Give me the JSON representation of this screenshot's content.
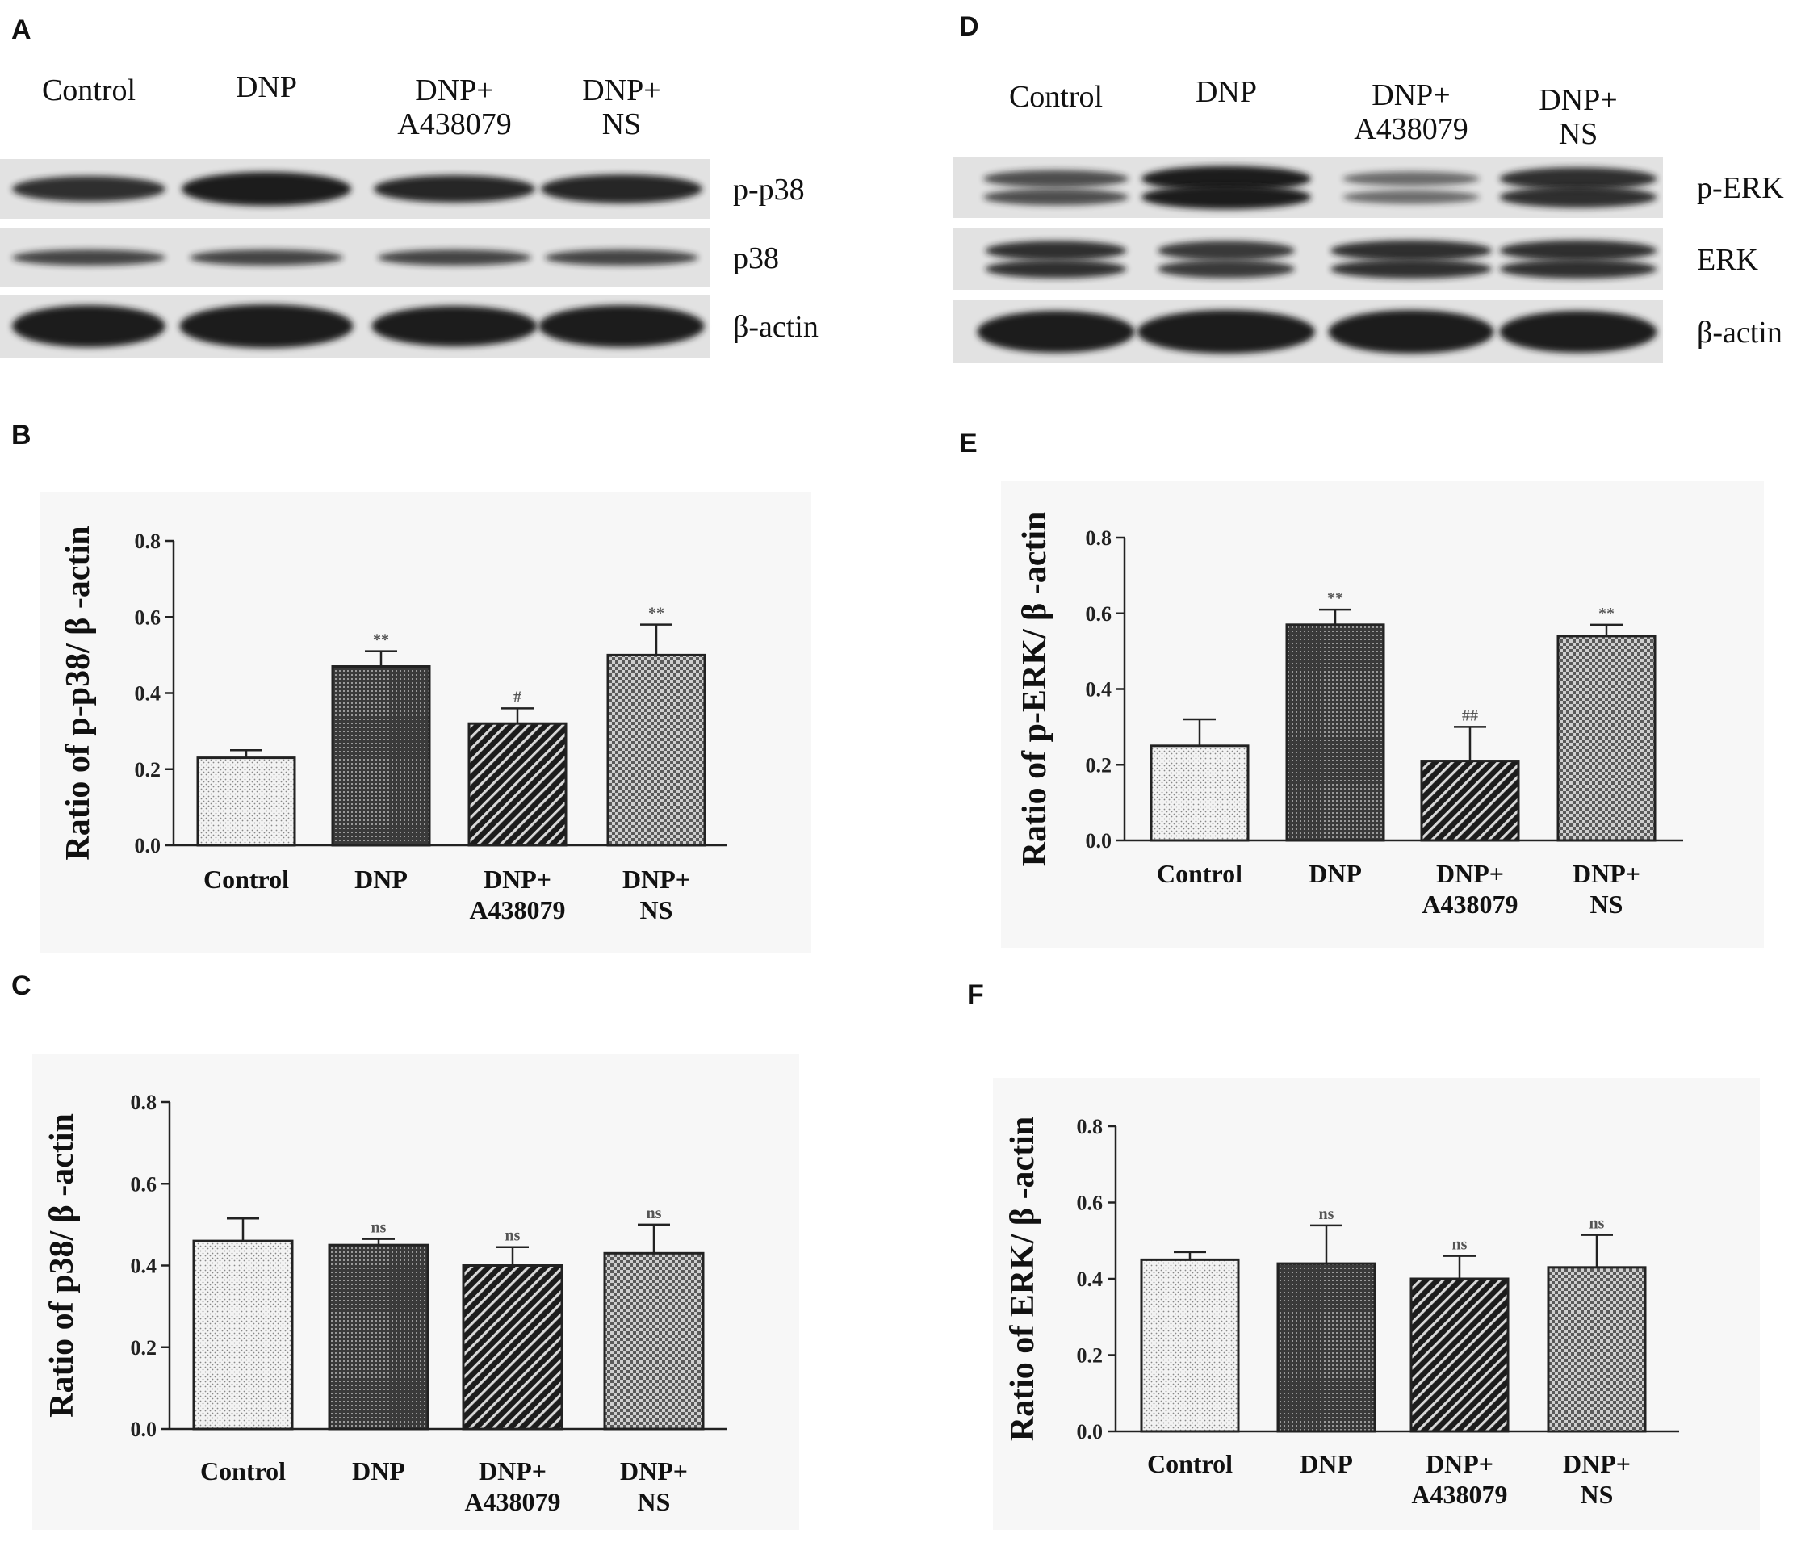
{
  "panel_labels": {
    "A": "A",
    "B": "B",
    "C": "C",
    "D": "D",
    "E": "E",
    "F": "F"
  },
  "blot_A": {
    "lanes": [
      "Control",
      "DNP",
      "DNP+ A438079",
      "DNP+ NS"
    ],
    "lane_lines": [
      [
        "Control"
      ],
      [
        "DNP"
      ],
      [
        "DNP+",
        "A438079"
      ],
      [
        "DNP+",
        "NS"
      ]
    ],
    "rows": [
      "p-p38",
      "p38",
      "β-actin"
    ]
  },
  "blot_D": {
    "lanes": [
      "Control",
      "DNP",
      "DNP+ A438079",
      "DNP+ NS"
    ],
    "lane_lines": [
      [
        "Control"
      ],
      [
        "DNP"
      ],
      [
        "DNP+",
        "A438079"
      ],
      [
        "DNP+",
        "NS"
      ]
    ],
    "rows": [
      "p-ERK",
      "ERK",
      "β-actin"
    ]
  },
  "colors": {
    "bar_stroke": "#222222",
    "chart_bg": "#f7f7f7",
    "blot_bg": "#e2e2e2",
    "band": "#1a1a1a"
  },
  "chart_data": [
    {
      "panel": "B",
      "type": "bar",
      "categories": [
        "Control",
        "DNP",
        "DNP+ A438079",
        "DNP+ NS"
      ],
      "category_lines": [
        [
          "Control"
        ],
        [
          "DNP"
        ],
        [
          "DNP+",
          "A438079"
        ],
        [
          "DNP+",
          "NS"
        ]
      ],
      "values": [
        0.23,
        0.47,
        0.32,
        0.5
      ],
      "errors": [
        0.02,
        0.04,
        0.04,
        0.08
      ],
      "annotations": [
        "",
        "**",
        "#",
        "**"
      ],
      "ylabel": "Ratio of p-p38/ β -actin",
      "ylim": [
        0,
        0.8
      ],
      "yticks": [
        "0.0",
        "0.2",
        "0.4",
        "0.6",
        "0.8"
      ],
      "patterns": [
        "dots",
        "grid",
        "stripes",
        "check"
      ]
    },
    {
      "panel": "C",
      "type": "bar",
      "categories": [
        "Control",
        "DNP",
        "DNP+ A438079",
        "DNP+ NS"
      ],
      "category_lines": [
        [
          "Control"
        ],
        [
          "DNP"
        ],
        [
          "DNP+",
          "A438079"
        ],
        [
          "DNP+",
          "NS"
        ]
      ],
      "values": [
        0.46,
        0.45,
        0.4,
        0.43
      ],
      "errors": [
        0.055,
        0.015,
        0.045,
        0.07
      ],
      "annotations": [
        "",
        "ns",
        "ns",
        "ns"
      ],
      "ylabel": "Ratio of p38/ β -actin",
      "ylim": [
        0,
        0.8
      ],
      "yticks": [
        "0.0",
        "0.2",
        "0.4",
        "0.6",
        "0.8"
      ],
      "patterns": [
        "dots",
        "grid",
        "stripes",
        "check"
      ]
    },
    {
      "panel": "E",
      "type": "bar",
      "categories": [
        "Control",
        "DNP",
        "DNP+ A438079",
        "DNP+ NS"
      ],
      "category_lines": [
        [
          "Control"
        ],
        [
          "DNP"
        ],
        [
          "DNP+",
          "A438079"
        ],
        [
          "DNP+",
          "NS"
        ]
      ],
      "values": [
        0.25,
        0.57,
        0.21,
        0.54
      ],
      "errors": [
        0.07,
        0.04,
        0.09,
        0.03
      ],
      "annotations": [
        "",
        "**",
        "##",
        "**"
      ],
      "ylabel": "Ratio of p-ERK/ β -actin",
      "ylim": [
        0,
        0.8
      ],
      "yticks": [
        "0.0",
        "0.2",
        "0.4",
        "0.6",
        "0.8"
      ],
      "patterns": [
        "dots",
        "grid",
        "stripes",
        "check"
      ]
    },
    {
      "panel": "F",
      "type": "bar",
      "categories": [
        "Control",
        "DNP",
        "DNP+ A438079",
        "DNP+ NS"
      ],
      "category_lines": [
        [
          "Control"
        ],
        [
          "DNP"
        ],
        [
          "DNP+",
          "A438079"
        ],
        [
          "DNP+",
          "NS"
        ]
      ],
      "values": [
        0.45,
        0.44,
        0.4,
        0.43
      ],
      "errors": [
        0.02,
        0.1,
        0.06,
        0.085
      ],
      "annotations": [
        "",
        "ns",
        "ns",
        "ns"
      ],
      "ylabel": "Ratio of ERK/ β -actin",
      "ylim": [
        0,
        0.8
      ],
      "yticks": [
        "0.0",
        "0.2",
        "0.4",
        "0.6",
        "0.8"
      ],
      "patterns": [
        "dots",
        "grid",
        "stripes",
        "check"
      ]
    }
  ]
}
